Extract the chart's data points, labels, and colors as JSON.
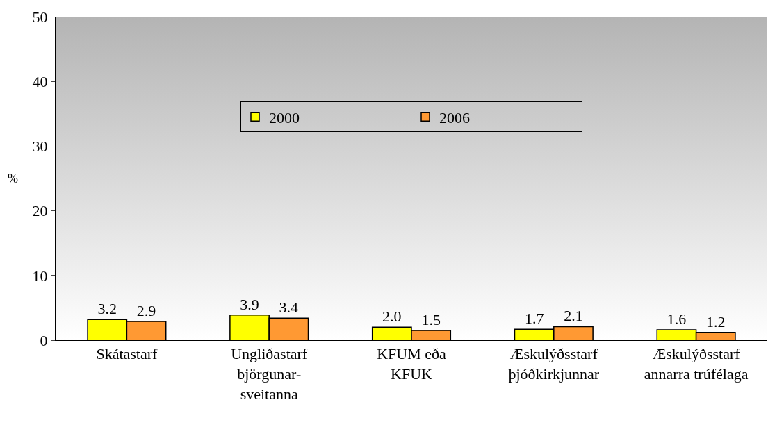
{
  "chart_data": {
    "type": "bar",
    "ylabel": "%",
    "categories": [
      "Skátastarf",
      "Ungliðastarf\nbjörgunar-\nsveitanna",
      "KFUM eða\nKFUK",
      "Æskulýðsstarf\nþjóðkirkjunnar",
      "Æskulýðsstarf\nannarra trúfélaga"
    ],
    "series": [
      {
        "name": "2000",
        "color": "#ffff00",
        "values": [
          3.2,
          3.9,
          2.0,
          1.7,
          1.6
        ],
        "value_labels": [
          "3.2",
          "3.9",
          "2.0",
          "1.7",
          "1.6"
        ]
      },
      {
        "name": "2006",
        "color": "#ff9933",
        "values": [
          2.9,
          3.4,
          1.5,
          2.1,
          1.2
        ],
        "value_labels": [
          "2.9",
          "3.4",
          "1.5",
          "2.1",
          "1.2"
        ]
      }
    ],
    "ylim": [
      0,
      50
    ],
    "yticks": [
      0,
      10,
      20,
      30,
      40,
      50
    ],
    "grid": false,
    "legend": "top"
  }
}
